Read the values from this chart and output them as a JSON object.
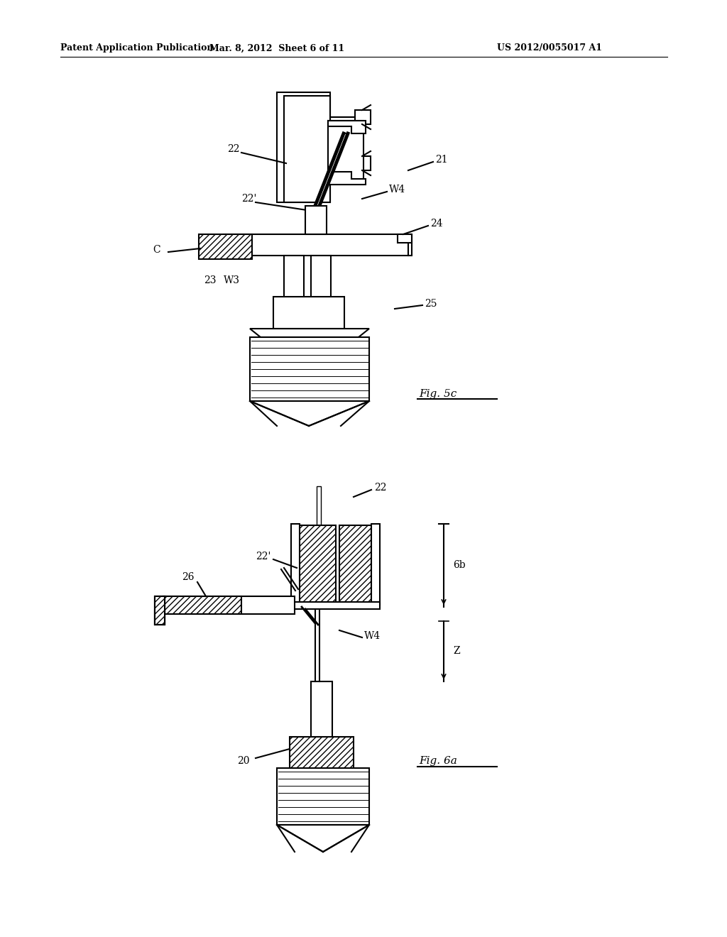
{
  "bg_color": "#ffffff",
  "line_color": "#000000",
  "header_left": "Patent Application Publication",
  "header_mid": "Mar. 8, 2012  Sheet 6 of 11",
  "header_right": "US 2012/0055017 A1",
  "fig5c_label": "Fig. 5c",
  "fig6a_label": "Fig. 6a"
}
